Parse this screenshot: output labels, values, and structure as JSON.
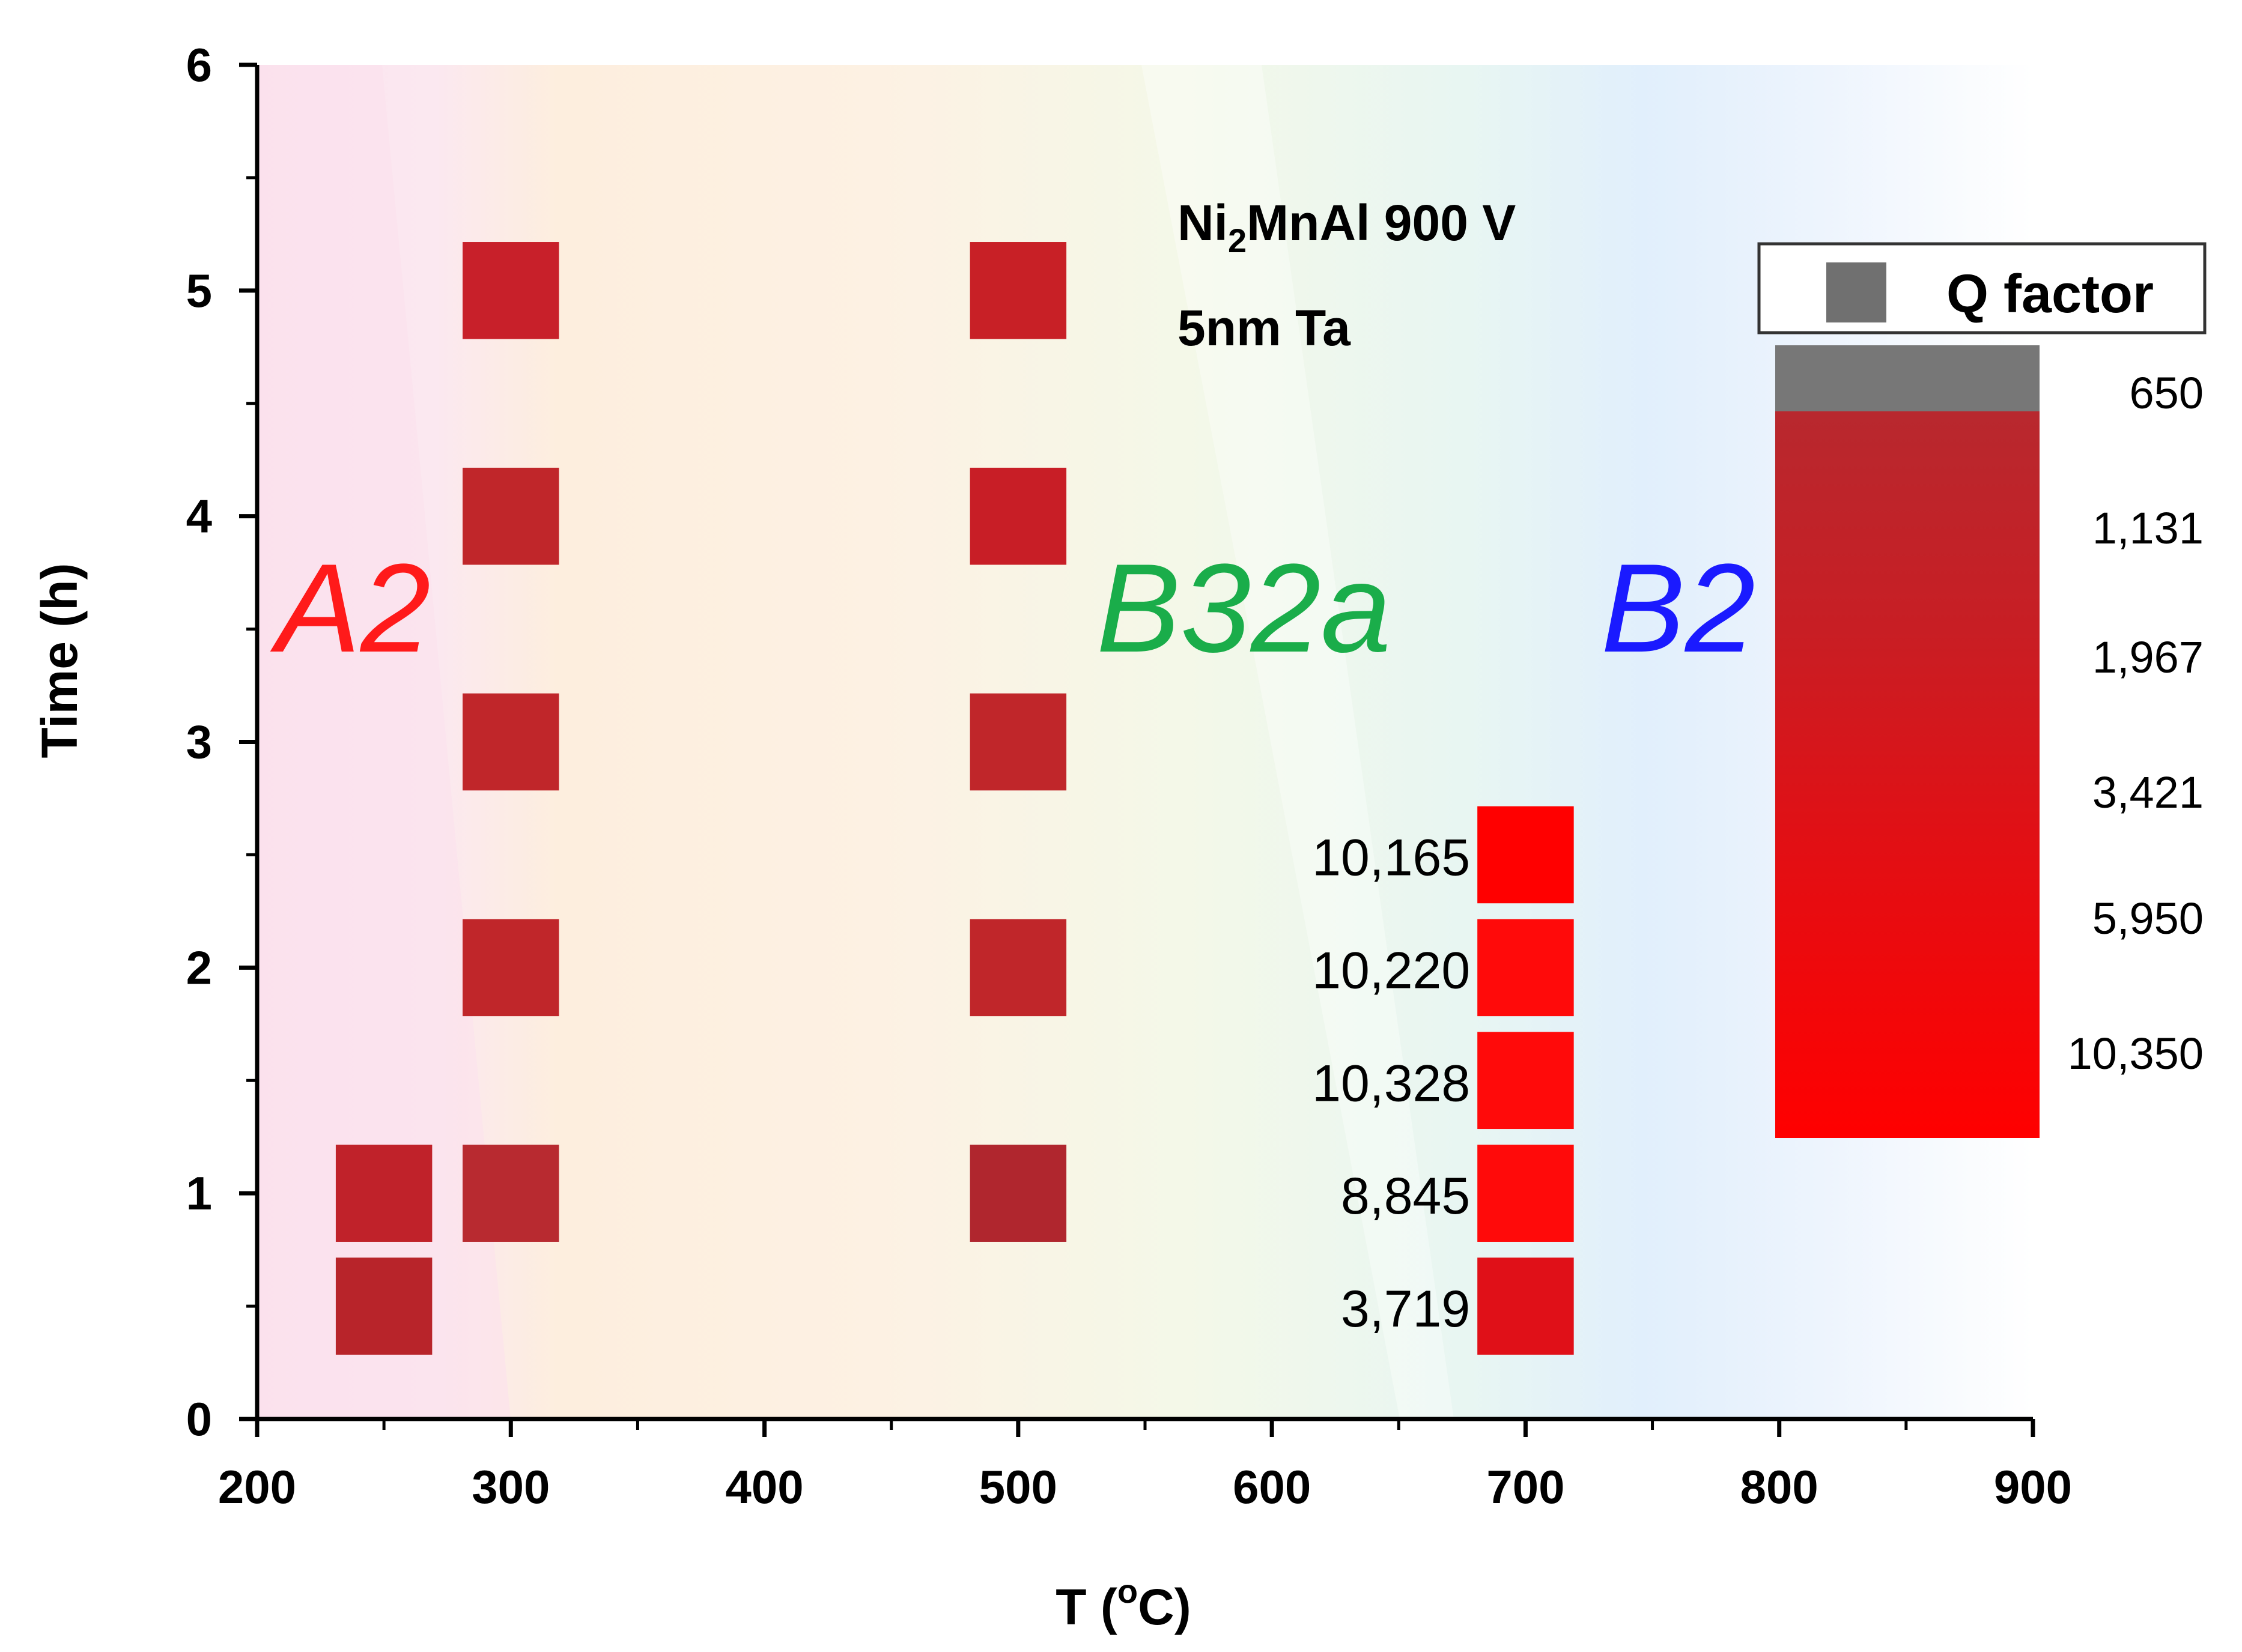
{
  "chart_data": {
    "type": "scatter",
    "title": "",
    "xlabel": "T (",
    "xlabel_sup": "o",
    "xlabel_end": "C)",
    "ylabel": "Time (h)",
    "xlim": [
      200,
      900
    ],
    "ylim": [
      0,
      6
    ],
    "x_ticks": [
      "200",
      "300",
      "400",
      "500",
      "600",
      "700",
      "800",
      "900"
    ],
    "y_ticks": [
      "0",
      "1",
      "2",
      "3",
      "4",
      "5",
      "6"
    ],
    "phases": [
      {
        "label": "A2",
        "color": "#ff1a1a"
      },
      {
        "label": "B32a",
        "color": "#1aad4a"
      },
      {
        "label": "B2",
        "color": "#1a1aff"
      }
    ],
    "annotation": {
      "line1_pre": "Ni",
      "line1_sub": "2",
      "line1_post": "MnAl 900 V",
      "line2": "5nm Ta"
    },
    "points": [
      {
        "T": 250,
        "time": 0.5,
        "q": null
      },
      {
        "T": 250,
        "time": 1,
        "q": null
      },
      {
        "T": 300,
        "time": 1,
        "q": null
      },
      {
        "T": 300,
        "time": 2,
        "q": null
      },
      {
        "T": 300,
        "time": 3,
        "q": null
      },
      {
        "T": 300,
        "time": 4,
        "q": null
      },
      {
        "T": 300,
        "time": 5,
        "q": null
      },
      {
        "T": 500,
        "time": 1,
        "q": null
      },
      {
        "T": 500,
        "time": 2,
        "q": null
      },
      {
        "T": 500,
        "time": 3,
        "q": null
      },
      {
        "T": 500,
        "time": 4,
        "q": null
      },
      {
        "T": 500,
        "time": 5,
        "q": null
      },
      {
        "T": 700,
        "time": 0.5,
        "q": "3,719"
      },
      {
        "T": 700,
        "time": 1,
        "q": "8,845"
      },
      {
        "T": 700,
        "time": 1.5,
        "q": "10,328"
      },
      {
        "T": 700,
        "time": 2,
        "q": "10,220"
      },
      {
        "T": 700,
        "time": 2.5,
        "q": "10,165"
      }
    ],
    "point_colors": [
      "#b8242a",
      "#c0222a",
      "#b82a30",
      "#c0262a",
      "#c0262a",
      "#c0262a",
      "#c8202a",
      "#b0262e",
      "#c0262a",
      "#c0262a",
      "#c81e26",
      "#c82026",
      "#e01018",
      "#ff0a0a",
      "#ff0a0a",
      "#ff0a0a",
      "#ff0000"
    ],
    "legend": {
      "label": "Q factor",
      "swatch_color": "#707070"
    },
    "colorbar": {
      "labels": [
        "650",
        "1,131",
        "1,967",
        "3,421",
        "5,950",
        "10,350"
      ],
      "colors": [
        "#777777",
        "#b02830",
        "#c81e24",
        "#e00f14",
        "#f00808",
        "#ff0000"
      ]
    }
  }
}
